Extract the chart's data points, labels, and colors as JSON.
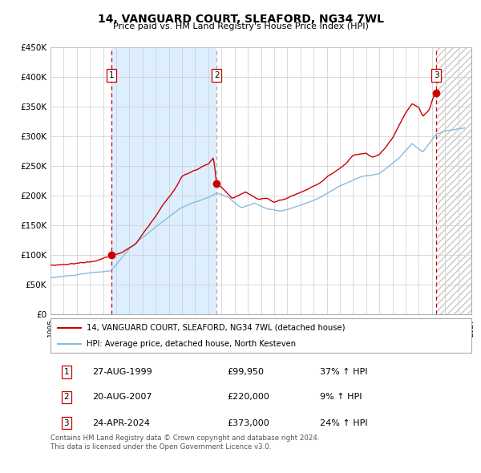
{
  "title": "14, VANGUARD COURT, SLEAFORD, NG34 7WL",
  "subtitle": "Price paid vs. HM Land Registry's House Price Index (HPI)",
  "xlim_left": 1995.0,
  "xlim_right": 2027.0,
  "ylim_bottom": 0,
  "ylim_top": 450000,
  "yticks": [
    0,
    50000,
    100000,
    150000,
    200000,
    250000,
    300000,
    350000,
    400000,
    450000
  ],
  "ytick_labels": [
    "£0",
    "£50K",
    "£100K",
    "£150K",
    "£200K",
    "£250K",
    "£300K",
    "£350K",
    "£400K",
    "£450K"
  ],
  "xticks": [
    1995,
    1996,
    1997,
    1998,
    1999,
    2000,
    2001,
    2002,
    2003,
    2004,
    2005,
    2006,
    2007,
    2008,
    2009,
    2010,
    2011,
    2012,
    2013,
    2014,
    2015,
    2016,
    2017,
    2018,
    2019,
    2020,
    2021,
    2022,
    2023,
    2024,
    2025,
    2026,
    2027
  ],
  "transactions": [
    {
      "num": 1,
      "date": "27-AUG-1999",
      "year": 1999.65,
      "price": 99950,
      "pct": "37%",
      "dir": "↑"
    },
    {
      "num": 2,
      "date": "20-AUG-2007",
      "year": 2007.63,
      "price": 220000,
      "pct": "9%",
      "dir": "↑"
    },
    {
      "num": 3,
      "date": "24-APR-2024",
      "year": 2024.32,
      "price": 373000,
      "pct": "24%",
      "dir": "↑"
    }
  ],
  "legend_line1": "14, VANGUARD COURT, SLEAFORD, NG34 7WL (detached house)",
  "legend_line2": "HPI: Average price, detached house, North Kesteven",
  "footnote1": "Contains HM Land Registry data © Crown copyright and database right 2024.",
  "footnote2": "This data is licensed under the Open Government Licence v3.0.",
  "price_line_color": "#cc0000",
  "hpi_line_color": "#88bbdd",
  "shade_color": "#ddeeff",
  "grid_color": "#cccccc",
  "vline_color_solid": "#cc0000",
  "vline_color_dashed": "#aaaaaa",
  "background_color": "#ffffff"
}
